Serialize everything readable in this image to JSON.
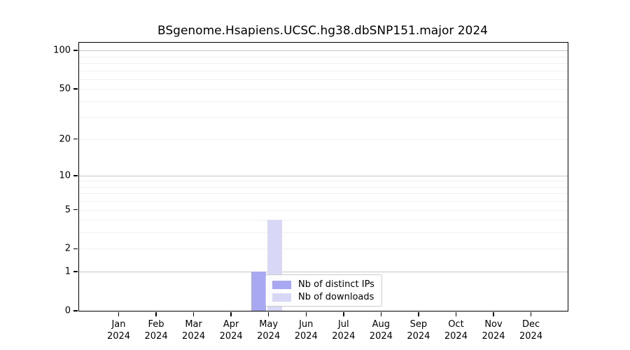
{
  "chart_data": {
    "type": "bar",
    "title": "BSgenome.Hsapiens.UCSC.hg38.dbSNP151.major 2024",
    "categories": [
      {
        "month": "Jan",
        "year": "2024"
      },
      {
        "month": "Feb",
        "year": "2024"
      },
      {
        "month": "Mar",
        "year": "2024"
      },
      {
        "month": "Apr",
        "year": "2024"
      },
      {
        "month": "May",
        "year": "2024"
      },
      {
        "month": "Jun",
        "year": "2024"
      },
      {
        "month": "Jul",
        "year": "2024"
      },
      {
        "month": "Aug",
        "year": "2024"
      },
      {
        "month": "Sep",
        "year": "2024"
      },
      {
        "month": "Oct",
        "year": "2024"
      },
      {
        "month": "Nov",
        "year": "2024"
      },
      {
        "month": "Dec",
        "year": "2024"
      }
    ],
    "series": [
      {
        "name": "Nb of distinct IPs",
        "color": "#a8a8f2",
        "values": [
          0,
          0,
          0,
          0,
          1,
          0,
          0,
          0,
          0,
          0,
          0,
          0
        ]
      },
      {
        "name": "Nb of downloads",
        "color": "#d8d8f6",
        "values": [
          0,
          0,
          0,
          0,
          4,
          0,
          0,
          0,
          0,
          0,
          0,
          0
        ]
      }
    ],
    "y_ticks": [
      0,
      1,
      2,
      5,
      10,
      20,
      50,
      100
    ],
    "y_scale": "log1p",
    "ylim": [
      0,
      115
    ],
    "grid": true,
    "legend_position": "inside-bottom-center"
  }
}
